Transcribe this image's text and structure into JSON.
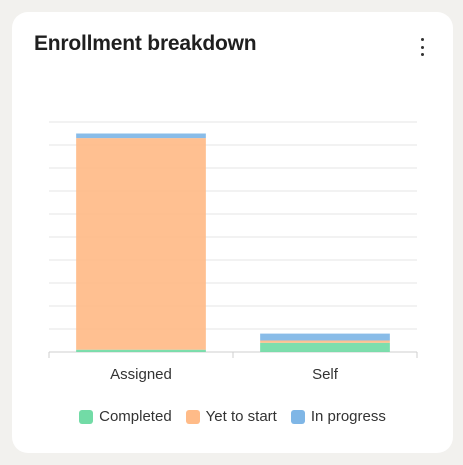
{
  "card": {
    "title": "Enrollment breakdown"
  },
  "icons": {
    "menu": "kebab-vertical-icon"
  },
  "colors": {
    "completed": "#72dba6",
    "yet_to_start": "#ffbb88",
    "in_progress": "#7fb6e6"
  },
  "legend": [
    {
      "label": "Completed",
      "color": "#72dba6"
    },
    {
      "label": "Yet to start",
      "color": "#ffbb88"
    },
    {
      "label": "In progress",
      "color": "#7fb6e6"
    }
  ],
  "chart_data": {
    "type": "bar",
    "stacked": true,
    "categories": [
      "Assigned",
      "Self"
    ],
    "series": [
      {
        "name": "Completed",
        "values": [
          1,
          4
        ]
      },
      {
        "name": "Yet to start",
        "values": [
          92,
          1
        ]
      },
      {
        "name": "In progress",
        "values": [
          2,
          3
        ]
      }
    ],
    "ylim": [
      0,
      100
    ],
    "grid": true,
    "legend_position": "bottom"
  }
}
